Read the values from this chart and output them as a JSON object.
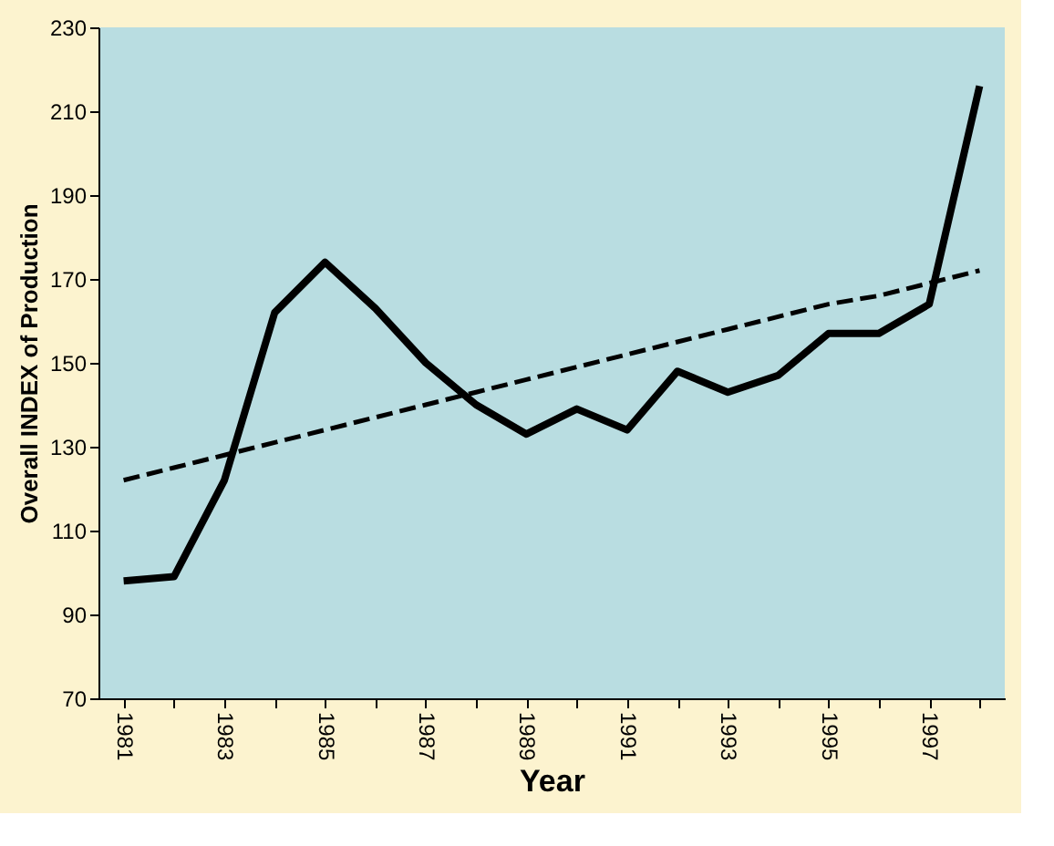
{
  "chart_data": {
    "type": "line",
    "xlabel": "Year",
    "ylabel": "Overall INDEX of Production",
    "categories": [
      "1981",
      null,
      "1983",
      null,
      "1985",
      null,
      "1987",
      null,
      "1989",
      null,
      "1991",
      null,
      "1993",
      null,
      "1995",
      null,
      "1997",
      null
    ],
    "series": [
      {
        "color": "#000000",
        "line_style": "solid",
        "values": [
          98,
          99,
          122,
          162,
          174,
          163,
          150,
          140,
          133,
          139,
          134,
          148,
          143,
          147,
          157,
          157,
          164,
          216
        ]
      },
      {
        "color": "#000000",
        "line_style": "dashed",
        "values": [
          122,
          125,
          128,
          131,
          134,
          137,
          140,
          143,
          146,
          149,
          152,
          155,
          158,
          161,
          164,
          166,
          169,
          172
        ]
      }
    ],
    "ylim": [
      70,
      230
    ],
    "yticks": [
      70,
      90,
      110,
      130,
      150,
      170,
      190,
      210,
      230
    ],
    "grid": false,
    "marker": "none"
  }
}
